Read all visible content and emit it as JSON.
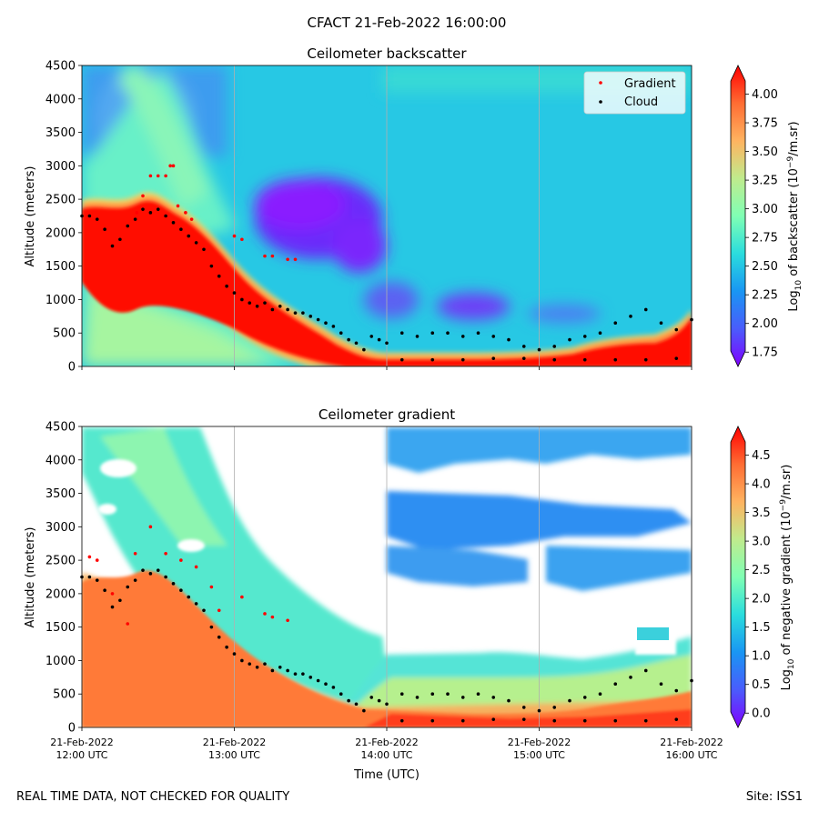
{
  "suptitle": "CFACT 21-Feb-2022 16:00:00",
  "footer": {
    "left": "REAL TIME DATA, NOT CHECKED FOR QUALITY",
    "right": "Site: ISS1"
  },
  "colors": {
    "gradient_marker": "#ff0000",
    "cloud_marker": "#000000",
    "colormap": "rainbow"
  },
  "chart_data": [
    {
      "type": "heatmap",
      "title": "Ceilometer backscatter",
      "ylabel": "Altitude (meters)",
      "xlabel": "",
      "xlim": [
        0,
        4
      ],
      "ylim": [
        0,
        4500
      ],
      "yticks": [
        0,
        500,
        1000,
        1500,
        2000,
        2500,
        3000,
        3500,
        4000,
        4500
      ],
      "xgrid": true,
      "legend": {
        "position": "top-right",
        "entries": [
          "Gradient",
          "Cloud"
        ]
      },
      "colorbar": {
        "label_prefix": "Log",
        "label_sub": "10",
        "label_mid": " of backscatter (10",
        "label_sup": "−9",
        "label_suffix": "/m.sr)",
        "vmin": 1.625,
        "vmax": 4.25,
        "ticks": [
          1.75,
          2.0,
          2.25,
          2.5,
          2.75,
          3.0,
          3.25,
          3.5,
          3.75,
          4.0
        ],
        "tick_labels": [
          "1.75",
          "2.00",
          "2.25",
          "2.50",
          "2.75",
          "3.00",
          "3.25",
          "3.50",
          "3.75",
          "4.00"
        ]
      },
      "series": [
        {
          "name": "Gradient",
          "x": [
            0.36,
            0.4,
            0.45,
            0.5,
            0.55,
            0.58,
            0.6,
            0.63,
            0.68,
            0.72,
            1.0,
            1.05,
            1.2,
            1.25,
            1.35,
            1.4
          ],
          "y": [
            2300,
            2550,
            2850,
            2850,
            2850,
            3000,
            3000,
            2400,
            2300,
            2200,
            1950,
            1900,
            1650,
            1650,
            1600,
            1600
          ]
        },
        {
          "name": "Cloud",
          "x": [
            0.0,
            0.05,
            0.1,
            0.15,
            0.2,
            0.25,
            0.3,
            0.35,
            0.4,
            0.45,
            0.5,
            0.55,
            0.6,
            0.65,
            0.7,
            0.75,
            0.8,
            0.85,
            0.9,
            0.95,
            1.0,
            1.05,
            1.1,
            1.15,
            1.2,
            1.25,
            1.3,
            1.35,
            1.4,
            1.45,
            1.5,
            1.55,
            1.6,
            1.65,
            1.7,
            1.75,
            1.8,
            1.85,
            1.9,
            1.95,
            2.0,
            2.1,
            2.2,
            2.3,
            2.4,
            2.5,
            2.6,
            2.7,
            2.8,
            2.9,
            3.0,
            3.1,
            3.2,
            3.3,
            3.4,
            3.5,
            3.6,
            3.7,
            3.8,
            3.9,
            4.0,
            2.1,
            2.3,
            2.5,
            2.7,
            2.9,
            3.1,
            3.3,
            3.5,
            3.7,
            3.9
          ],
          "y": [
            2250,
            2250,
            2200,
            2050,
            1800,
            1900,
            2100,
            2200,
            2350,
            2300,
            2350,
            2250,
            2150,
            2050,
            1950,
            1850,
            1750,
            1500,
            1350,
            1200,
            1100,
            1000,
            950,
            900,
            950,
            850,
            900,
            850,
            800,
            800,
            750,
            700,
            650,
            600,
            500,
            400,
            350,
            250,
            450,
            400,
            350,
            500,
            450,
            500,
            500,
            450,
            500,
            450,
            400,
            300,
            250,
            300,
            400,
            450,
            500,
            650,
            750,
            850,
            650,
            550,
            700,
            100,
            100,
            100,
            120,
            120,
            100,
            100,
            100,
            100,
            120
          ]
        }
      ]
    },
    {
      "type": "heatmap",
      "title": "Ceilometer gradient",
      "ylabel": "Altitude (meters)",
      "xlabel": "Time (UTC)",
      "xlim": [
        0,
        4
      ],
      "ylim": [
        0,
        4500
      ],
      "yticks": [
        0,
        500,
        1000,
        1500,
        2000,
        2500,
        3000,
        3500,
        4000,
        4500
      ],
      "xticks": [
        0,
        1,
        2,
        3,
        4
      ],
      "xtick_labels": [
        [
          "21-Feb-2022",
          "12:00 UTC"
        ],
        [
          "21-Feb-2022",
          "13:00 UTC"
        ],
        [
          "21-Feb-2022",
          "14:00 UTC"
        ],
        [
          "21-Feb-2022",
          "15:00 UTC"
        ],
        [
          "21-Feb-2022",
          "16:00 UTC"
        ]
      ],
      "xgrid": true,
      "colorbar": {
        "label_prefix": "Log",
        "label_sub": "10",
        "label_mid": " of negative gradient (10",
        "label_sup": "−9",
        "label_suffix": "/m.sr)",
        "vmin": -0.25,
        "vmax": 5.0,
        "ticks": [
          0.0,
          0.5,
          1.0,
          1.5,
          2.0,
          2.5,
          3.0,
          3.5,
          4.0,
          4.5
        ],
        "tick_labels": [
          "0.0",
          "0.5",
          "1.0",
          "1.5",
          "2.0",
          "2.5",
          "3.0",
          "3.5",
          "4.0",
          "4.5"
        ]
      },
      "series": [
        {
          "name": "Gradient",
          "x": [
            0.05,
            0.1,
            0.2,
            0.3,
            0.35,
            0.45,
            0.55,
            0.65,
            0.75,
            0.85,
            0.9,
            1.05,
            1.2,
            1.25,
            1.35
          ],
          "y": [
            2550,
            2500,
            2000,
            1550,
            2600,
            3000,
            2600,
            2500,
            2400,
            2100,
            1750,
            1950,
            1700,
            1650,
            1600
          ]
        },
        {
          "name": "Cloud",
          "x": [
            0.0,
            0.05,
            0.1,
            0.15,
            0.2,
            0.25,
            0.3,
            0.35,
            0.4,
            0.45,
            0.5,
            0.55,
            0.6,
            0.65,
            0.7,
            0.75,
            0.8,
            0.85,
            0.9,
            0.95,
            1.0,
            1.05,
            1.1,
            1.15,
            1.2,
            1.25,
            1.3,
            1.35,
            1.4,
            1.45,
            1.5,
            1.55,
            1.6,
            1.65,
            1.7,
            1.75,
            1.8,
            1.85,
            1.9,
            1.95,
            2.0,
            2.1,
            2.2,
            2.3,
            2.4,
            2.5,
            2.6,
            2.7,
            2.8,
            2.9,
            3.0,
            3.1,
            3.2,
            3.3,
            3.4,
            3.5,
            3.6,
            3.7,
            3.8,
            3.9,
            4.0,
            2.1,
            2.3,
            2.5,
            2.7,
            2.9,
            3.1,
            3.3,
            3.5,
            3.7,
            3.9
          ],
          "y": [
            2250,
            2250,
            2200,
            2050,
            1800,
            1900,
            2100,
            2200,
            2350,
            2300,
            2350,
            2250,
            2150,
            2050,
            1950,
            1850,
            1750,
            1500,
            1350,
            1200,
            1100,
            1000,
            950,
            900,
            950,
            850,
            900,
            850,
            800,
            800,
            750,
            700,
            650,
            600,
            500,
            400,
            350,
            250,
            450,
            400,
            350,
            500,
            450,
            500,
            500,
            450,
            500,
            450,
            400,
            300,
            250,
            300,
            400,
            450,
            500,
            650,
            750,
            850,
            650,
            550,
            700,
            100,
            100,
            100,
            120,
            120,
            100,
            100,
            100,
            100,
            120
          ]
        }
      ]
    }
  ]
}
